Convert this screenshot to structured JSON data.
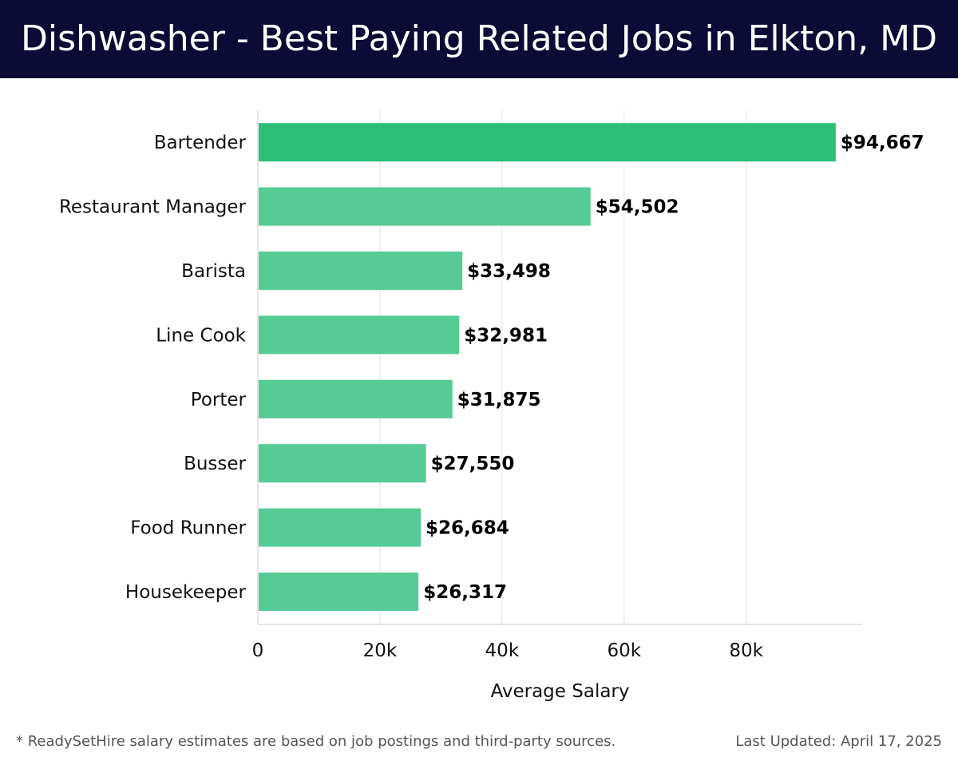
{
  "header": {
    "title": "Dishwasher - Best Paying Related Jobs in Elkton, MD"
  },
  "chart_data": {
    "type": "bar",
    "orientation": "horizontal",
    "categories": [
      "Bartender",
      "Restaurant Manager",
      "Barista",
      "Line Cook",
      "Porter",
      "Busser",
      "Food Runner",
      "Housekeeper"
    ],
    "values": [
      94667,
      54502,
      33498,
      32981,
      31875,
      27550,
      26684,
      26317
    ],
    "value_labels": [
      "$94,667",
      "$54,502",
      "$33,498",
      "$32,981",
      "$31,875",
      "$27,550",
      "$26,684",
      "$26,317"
    ],
    "xlabel": "Average Salary",
    "ylabel": "",
    "xlim": [
      0,
      99000
    ],
    "x_ticks": [
      0,
      20000,
      40000,
      60000,
      80000
    ],
    "x_tick_labels": [
      "0",
      "20k",
      "40k",
      "60k",
      "80k"
    ],
    "grid": true,
    "colors": {
      "highlight": "#2bbf77",
      "default": "#56cb95",
      "grid": "#e2e2e2",
      "axis": "#cccccc",
      "label": "#111111"
    }
  },
  "footer": {
    "note": "* ReadySetHire salary estimates are based on job postings and third-party sources.",
    "updated": "Last Updated: April 17, 2025"
  }
}
